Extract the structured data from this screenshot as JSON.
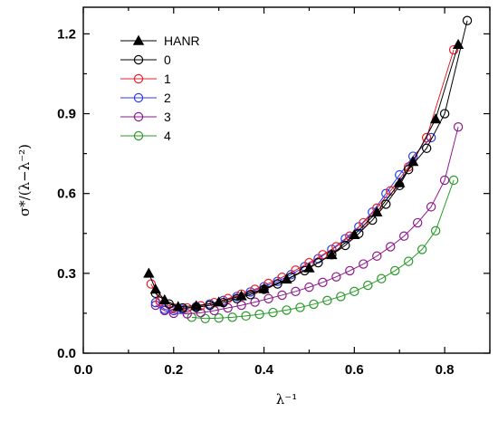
{
  "chart_data": {
    "type": "scatter",
    "title": "",
    "xlabel": "λ⁻¹",
    "ylabel": "σ*/(λ−λ⁻²)",
    "xlim": [
      0.0,
      0.9
    ],
    "ylim": [
      0.0,
      1.3
    ],
    "xticks": [
      "0.0",
      "0.2",
      "0.4",
      "0.6",
      "0.8"
    ],
    "yticks": [
      "0.0",
      "0.3",
      "0.6",
      "0.9",
      "1.2"
    ],
    "grid": false,
    "legend_position": "top-left",
    "series": [
      {
        "name": "HANR",
        "color": "#000000",
        "marker": "filled-triangle",
        "x": [
          0.145,
          0.16,
          0.18,
          0.21,
          0.25,
          0.3,
          0.35,
          0.4,
          0.45,
          0.5,
          0.55,
          0.6,
          0.65,
          0.7,
          0.73,
          0.78,
          0.83
        ],
        "y": [
          0.3,
          0.24,
          0.2,
          0.175,
          0.178,
          0.192,
          0.215,
          0.242,
          0.278,
          0.32,
          0.37,
          0.445,
          0.53,
          0.64,
          0.72,
          0.88,
          1.16
        ]
      },
      {
        "name": "0",
        "color": "#000000",
        "marker": "open-circle",
        "x": [
          0.16,
          0.19,
          0.22,
          0.25,
          0.28,
          0.31,
          0.34,
          0.37,
          0.4,
          0.43,
          0.46,
          0.49,
          0.52,
          0.55,
          0.58,
          0.61,
          0.64,
          0.67,
          0.7,
          0.72,
          0.76,
          0.8,
          0.85
        ],
        "y": [
          0.225,
          0.185,
          0.17,
          0.172,
          0.18,
          0.19,
          0.205,
          0.22,
          0.24,
          0.26,
          0.285,
          0.31,
          0.34,
          0.37,
          0.405,
          0.45,
          0.5,
          0.56,
          0.63,
          0.69,
          0.77,
          0.9,
          1.25
        ]
      },
      {
        "name": "1",
        "color": "#e8202a",
        "marker": "open-circle",
        "x": [
          0.15,
          0.17,
          0.2,
          0.23,
          0.26,
          0.29,
          0.32,
          0.35,
          0.38,
          0.41,
          0.44,
          0.47,
          0.5,
          0.53,
          0.56,
          0.59,
          0.62,
          0.65,
          0.68,
          0.72,
          0.76,
          0.82
        ],
        "y": [
          0.26,
          0.195,
          0.17,
          0.17,
          0.178,
          0.19,
          0.205,
          0.222,
          0.24,
          0.262,
          0.285,
          0.312,
          0.34,
          0.37,
          0.4,
          0.44,
          0.49,
          0.545,
          0.61,
          0.7,
          0.81,
          1.14
        ]
      },
      {
        "name": "2",
        "color": "#2a3cf0",
        "marker": "open-circle",
        "x": [
          0.16,
          0.18,
          0.2,
          0.22,
          0.25,
          0.28,
          0.31,
          0.34,
          0.37,
          0.4,
          0.43,
          0.46,
          0.49,
          0.52,
          0.55,
          0.58,
          0.61,
          0.64,
          0.67,
          0.7,
          0.73,
          0.77
        ],
        "y": [
          0.19,
          0.165,
          0.16,
          0.165,
          0.175,
          0.185,
          0.198,
          0.213,
          0.23,
          0.25,
          0.27,
          0.295,
          0.325,
          0.355,
          0.39,
          0.43,
          0.475,
          0.53,
          0.6,
          0.67,
          0.74,
          0.81
        ]
      },
      {
        "name": "3",
        "color": "#8c1a8c",
        "marker": "open-circle",
        "x": [
          0.16,
          0.18,
          0.2,
          0.23,
          0.26,
          0.29,
          0.32,
          0.35,
          0.38,
          0.41,
          0.44,
          0.47,
          0.5,
          0.53,
          0.56,
          0.59,
          0.62,
          0.65,
          0.68,
          0.71,
          0.74,
          0.77,
          0.8,
          0.83
        ],
        "y": [
          0.18,
          0.16,
          0.15,
          0.148,
          0.152,
          0.16,
          0.17,
          0.18,
          0.192,
          0.205,
          0.218,
          0.232,
          0.248,
          0.266,
          0.287,
          0.31,
          0.335,
          0.365,
          0.4,
          0.44,
          0.49,
          0.55,
          0.65,
          0.85
        ]
      },
      {
        "name": "4",
        "color": "#2a9a2a",
        "marker": "open-circle",
        "x": [
          0.24,
          0.27,
          0.3,
          0.33,
          0.36,
          0.39,
          0.42,
          0.45,
          0.48,
          0.51,
          0.54,
          0.57,
          0.6,
          0.63,
          0.66,
          0.69,
          0.72,
          0.75,
          0.78,
          0.82
        ],
        "y": [
          0.135,
          0.13,
          0.132,
          0.135,
          0.14,
          0.146,
          0.153,
          0.162,
          0.172,
          0.184,
          0.198,
          0.213,
          0.232,
          0.255,
          0.28,
          0.31,
          0.345,
          0.39,
          0.46,
          0.65
        ]
      }
    ]
  }
}
